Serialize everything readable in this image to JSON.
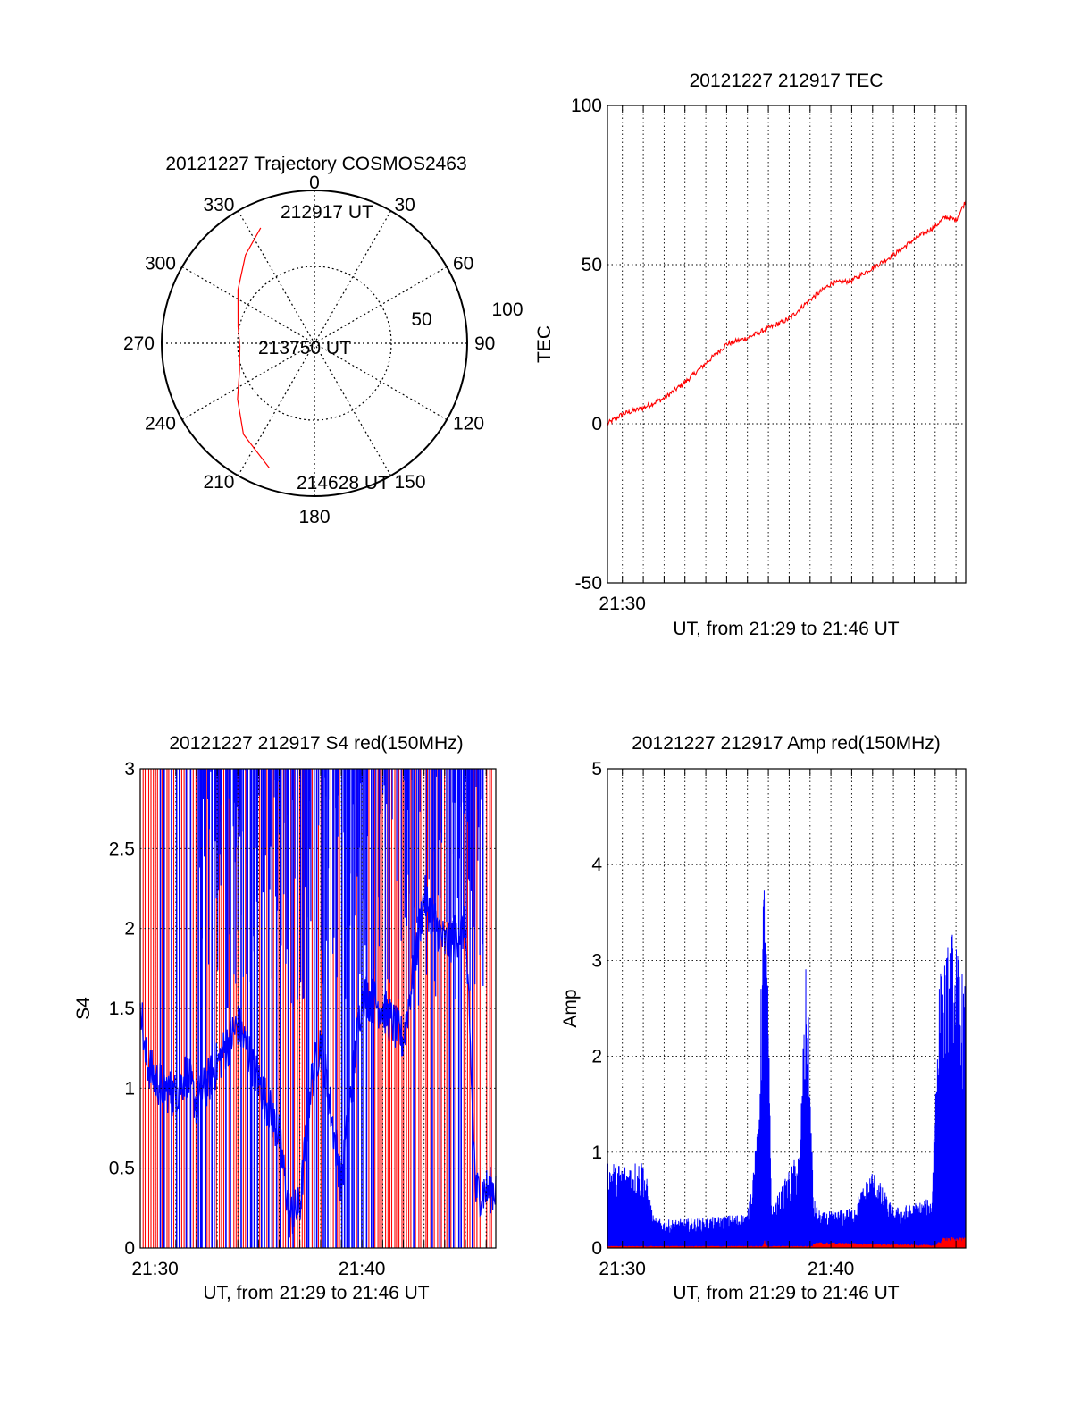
{
  "colors": {
    "primary": "#ff0000",
    "secondary": "#0000ff",
    "grid": "#000000"
  },
  "chart_data": [
    {
      "type": "polar",
      "title": "20121227 Trajectory COSMOS2463",
      "azimuth_labels": [
        "0",
        "30",
        "60",
        "90",
        "120",
        "150",
        "180",
        "210",
        "240",
        "270",
        "300",
        "330"
      ],
      "radial_labels": [
        "50",
        "100"
      ],
      "radial_ticks": [
        50,
        100
      ],
      "trajectory": {
        "points": [
          {
            "az": 335,
            "el": 15
          },
          {
            "az": 322,
            "el": 24
          },
          {
            "az": 305,
            "el": 35
          },
          {
            "az": 282,
            "el": 44
          },
          {
            "az": 268,
            "el": 46
          },
          {
            "az": 250,
            "el": 43
          },
          {
            "az": 234,
            "el": 34
          },
          {
            "az": 218,
            "el": 22
          },
          {
            "az": 200,
            "el": 12
          }
        ],
        "labels": [
          {
            "text": "212917 UT",
            "az": 335,
            "el": 15
          },
          {
            "text": "213750 UT",
            "az": 268,
            "el": 46
          },
          {
            "text": "214628 UT",
            "az": 200,
            "el": 12
          }
        ]
      }
    },
    {
      "type": "line",
      "title": "20121227 212917 TEC",
      "xlabel": "UT, from 21:29 to 21:46 UT",
      "ylabel": "TEC",
      "ylim": [
        -50,
        100
      ],
      "yticks": [
        -50,
        0,
        50,
        100
      ],
      "xlim": [
        "21:29:17",
        "21:46:28"
      ],
      "xticks": [
        {
          "t": "21:30:00",
          "label": "21:30"
        }
      ],
      "series": [
        {
          "color": "red",
          "x": [
            "21:29:17",
            "21:30:00",
            "21:31:00",
            "21:32:00",
            "21:33:00",
            "21:34:00",
            "21:35:00",
            "21:36:00",
            "21:37:00",
            "21:38:00",
            "21:39:00",
            "21:40:00",
            "21:41:00",
            "21:42:00",
            "21:43:00",
            "21:44:00",
            "21:45:00",
            "21:45:30",
            "21:46:00",
            "21:46:28"
          ],
          "y": [
            0,
            3,
            5,
            8,
            13,
            19,
            25,
            27,
            30,
            33,
            39,
            44,
            45,
            49,
            53,
            58,
            62,
            65,
            64,
            70
          ]
        }
      ]
    },
    {
      "type": "line",
      "title": "20121227 212917 S4 red(150MHz)",
      "xlabel": "UT, from 21:29 to 21:46 UT",
      "ylabel": "S4",
      "ylim": [
        0,
        3
      ],
      "yticks": [
        0,
        0.5,
        1,
        1.5,
        2,
        2.5,
        3
      ],
      "yticklabels": [
        "0",
        "0.5",
        "1",
        "1.5",
        "2",
        "2.5",
        "3"
      ],
      "xlim": [
        "21:29:17",
        "21:46:28"
      ],
      "xticks": [
        {
          "t": "21:30:00",
          "label": "21:30"
        },
        {
          "t": "21:40:00",
          "label": "21:40"
        }
      ],
      "series": [
        {
          "color": "blue",
          "x": [
            "21:29:17",
            "21:29:30",
            "21:30:00",
            "21:30:30",
            "21:31:00",
            "21:31:30",
            "21:32:00",
            "21:34:00",
            "21:36:00",
            "21:36:30",
            "21:37:00",
            "21:37:30",
            "21:38:00",
            "21:39:00",
            "21:40:00",
            "21:41:00",
            "21:42:00",
            "21:43:00",
            "21:44:00",
            "21:45:00",
            "21:45:30",
            "21:46:00",
            "21:46:28"
          ],
          "y": [
            1.6,
            1.2,
            1.05,
            1.0,
            0.95,
            1.1,
            0.9,
            1.4,
            0.7,
            0.2,
            0.25,
            1.0,
            1.3,
            0.4,
            1.6,
            1.5,
            1.3,
            2.2,
            1.9,
            2.0,
            0.35,
            0.36,
            0.37
          ]
        }
      ]
    },
    {
      "type": "area",
      "title": "20121227 212917 Amp red(150MHz)",
      "xlabel": "UT, from 21:29 to 21:46 UT",
      "ylabel": "Amp",
      "ylim": [
        0,
        5
      ],
      "yticks": [
        0,
        1,
        2,
        3,
        4,
        5
      ],
      "xlim": [
        "21:29:17",
        "21:46:28"
      ],
      "xticks": [
        {
          "t": "21:30:00",
          "label": "21:30"
        },
        {
          "t": "21:40:00",
          "label": "21:40"
        }
      ],
      "series": [
        {
          "color": "blue",
          "x": [
            "21:29:17",
            "21:30:00",
            "21:31:00",
            "21:31:30",
            "21:32:00",
            "21:34:00",
            "21:36:00",
            "21:36:30",
            "21:36:50",
            "21:37:10",
            "21:38:30",
            "21:38:50",
            "21:39:10",
            "21:39:30",
            "21:41:00",
            "21:42:00",
            "21:43:00",
            "21:44:00",
            "21:44:50",
            "21:45:10",
            "21:45:50",
            "21:46:28"
          ],
          "y": [
            0.9,
            0.85,
            0.9,
            0.3,
            0.28,
            0.3,
            0.35,
            1.2,
            4.3,
            0.4,
            1.0,
            3.0,
            0.5,
            0.35,
            0.4,
            0.8,
            0.4,
            0.45,
            0.5,
            2.7,
            3.2,
            2.6
          ]
        },
        {
          "color": "red",
          "x": [
            "21:36:44",
            "21:36:50",
            "21:36:56",
            "21:39:08",
            "21:39:12",
            "21:45:00",
            "21:45:30",
            "21:46:00",
            "21:46:28"
          ],
          "y": [
            0.02,
            0.08,
            0.02,
            0.02,
            0.06,
            0.03,
            0.12,
            0.1,
            0.11
          ]
        }
      ]
    }
  ]
}
